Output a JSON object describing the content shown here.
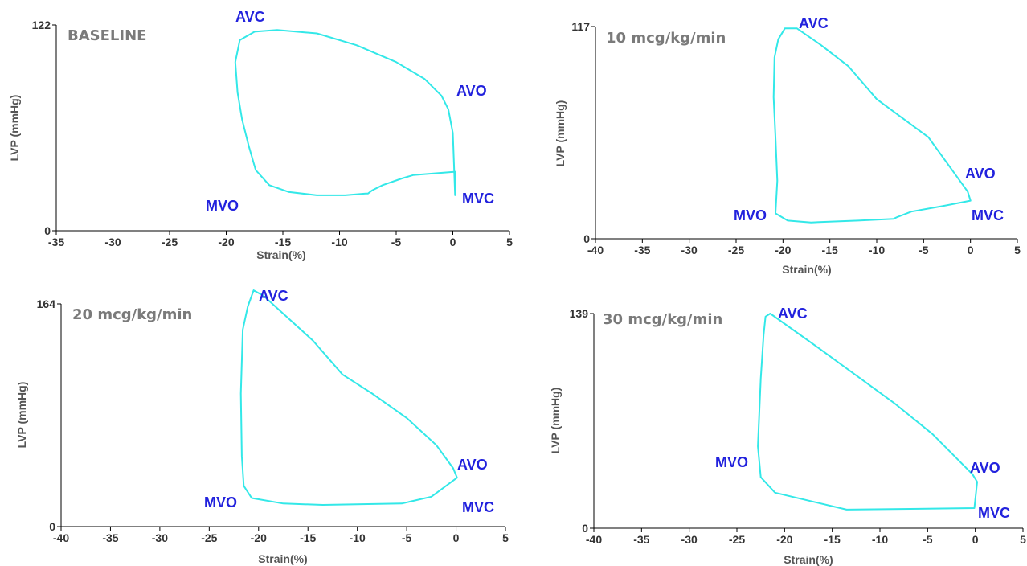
{
  "chart_data": [
    {
      "type": "line",
      "title": "BASELINE",
      "xlabel": "Strain(%)",
      "ylabel": "LVP (mmHg)",
      "xlim": [
        -35,
        5
      ],
      "ylim": [
        0,
        122
      ],
      "xticks": [
        -35,
        -30,
        -25,
        -20,
        -15,
        -10,
        -5,
        0,
        5
      ],
      "yticks": [
        0,
        122
      ],
      "series": [
        {
          "color": "#33e8e8",
          "x": [
            0.2,
            0.1,
            0.0,
            -0.4,
            -1.0,
            -2.5,
            -5.0,
            -8.5,
            -12.0,
            -15.5,
            -17.5,
            -18.8,
            -19.2,
            -19.0,
            -18.6,
            -18.0,
            -17.4,
            -16.2,
            -14.5,
            -12.0,
            -9.5,
            -7.7,
            -7.5,
            -7.1,
            -6.2,
            -4.5,
            -3.5,
            0.2
          ],
          "y": [
            21,
            40,
            58,
            72,
            80,
            90,
            100,
            110,
            117,
            119,
            118,
            113,
            100,
            82,
            66,
            50,
            36,
            27,
            23,
            21,
            21,
            22,
            22,
            24,
            27,
            31,
            33,
            35
          ]
        }
      ],
      "annotations": [
        "AVC",
        "AVO",
        "MVC",
        "MVO"
      ]
    },
    {
      "type": "line",
      "title": "10 mcg/kg/min",
      "xlabel": "Strain(%)",
      "ylabel": "LVP (mmHg)",
      "xlim": [
        -40,
        5
      ],
      "ylim": [
        0,
        117
      ],
      "xticks": [
        -40,
        -35,
        -30,
        -25,
        -20,
        -15,
        -10,
        -5,
        0,
        5
      ],
      "yticks": [
        0,
        117
      ],
      "series": [
        {
          "color": "#33e8e8",
          "x": [
            0,
            -0.3,
            -4.5,
            -10,
            -13,
            -16,
            -18.5,
            -19.8,
            -20.5,
            -20.9,
            -21,
            -20.8,
            -20.6,
            -20.8,
            -19.5,
            -17,
            -12,
            -8.2,
            -7.8,
            -6.3,
            -3,
            0
          ],
          "y": [
            21,
            26,
            56,
            77,
            95,
            107,
            116,
            116,
            110,
            100,
            78,
            56,
            32,
            14,
            10,
            9,
            10,
            11,
            12,
            15,
            18,
            21
          ]
        }
      ],
      "annotations": [
        "AVC",
        "AVO",
        "MVC",
        "MVO"
      ]
    },
    {
      "type": "line",
      "title": "20 mcg/kg/min",
      "xlabel": "Strain(%)",
      "ylabel": "LVP (mmHg)",
      "xlim": [
        -40,
        5
      ],
      "ylim": [
        0,
        164
      ],
      "xticks": [
        -40,
        -35,
        -30,
        -25,
        -20,
        -15,
        -10,
        -5,
        0,
        5
      ],
      "yticks": [
        0,
        164
      ],
      "series": [
        {
          "color": "#33e8e8",
          "x": [
            0.1,
            -0.3,
            -2,
            -5,
            -8.5,
            -11.5,
            -14.5,
            -19.5,
            -20.5,
            -21.1,
            -21.6,
            -21.8,
            -21.7,
            -21.5,
            -20.7,
            -17.5,
            -13.5,
            -5.5,
            -2.5,
            0.1
          ],
          "y": [
            36,
            43,
            60,
            80,
            98,
            112,
            137,
            170,
            174,
            162,
            145,
            98,
            52,
            30,
            21,
            17,
            16,
            17,
            22,
            36
          ]
        }
      ],
      "annotations": [
        "AVC",
        "AVO",
        "MVC",
        "MVO"
      ]
    },
    {
      "type": "line",
      "title": "30 mcg/kg/min",
      "xlabel": "Strain(%)",
      "ylabel": "LVP (mmHg)",
      "xlim": [
        -40,
        5
      ],
      "ylim": [
        0,
        139
      ],
      "xticks": [
        -40,
        -35,
        -30,
        -25,
        -20,
        -15,
        -10,
        -5,
        0,
        5
      ],
      "yticks": [
        0,
        139
      ],
      "series": [
        {
          "color": "#33e8e8",
          "x": [
            0.2,
            -0.3,
            -4.5,
            -8.5,
            -12.5,
            -16.5,
            -21.5,
            -22,
            -22.2,
            -22.5,
            -22.8,
            -22.5,
            -21,
            -13.5,
            -0.1,
            0.2
          ],
          "y": [
            30,
            35,
            61,
            81,
            99,
            117,
            139,
            137,
            125,
            97,
            53,
            33,
            23,
            12,
            13,
            30
          ]
        }
      ],
      "annotations": [
        "AVC",
        "AVO",
        "MVC",
        "MVO"
      ]
    }
  ]
}
